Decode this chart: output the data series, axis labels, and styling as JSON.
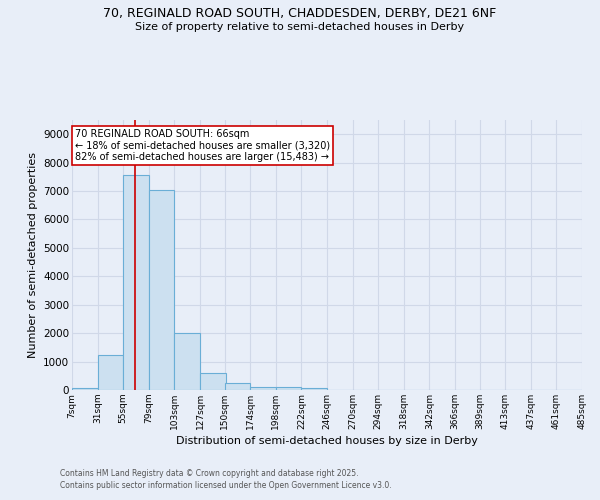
{
  "title_line1": "70, REGINALD ROAD SOUTH, CHADDESDEN, DERBY, DE21 6NF",
  "title_line2": "Size of property relative to semi-detached houses in Derby",
  "xlabel": "Distribution of semi-detached houses by size in Derby",
  "ylabel": "Number of semi-detached properties",
  "bar_left_edges": [
    7,
    31,
    55,
    79,
    103,
    127,
    150,
    174,
    198,
    222,
    246,
    270,
    294,
    318,
    342,
    366,
    389,
    413,
    437,
    461
  ],
  "bar_widths": [
    24,
    24,
    24,
    24,
    24,
    24,
    24,
    24,
    24,
    24,
    24,
    24,
    24,
    24,
    24,
    24,
    24,
    24,
    24,
    24
  ],
  "bar_heights": [
    70,
    1220,
    7580,
    7030,
    2020,
    590,
    250,
    110,
    100,
    70,
    0,
    0,
    0,
    0,
    0,
    0,
    0,
    0,
    0,
    0
  ],
  "bar_color": "#cce0f0",
  "bar_edge_color": "#6aaed6",
  "bar_edge_width": 0.8,
  "x_tick_labels": [
    "7sqm",
    "31sqm",
    "55sqm",
    "79sqm",
    "103sqm",
    "127sqm",
    "150sqm",
    "174sqm",
    "198sqm",
    "222sqm",
    "246sqm",
    "270sqm",
    "294sqm",
    "318sqm",
    "342sqm",
    "366sqm",
    "389sqm",
    "413sqm",
    "437sqm",
    "461sqm",
    "485sqm"
  ],
  "x_tick_positions": [
    7,
    31,
    55,
    79,
    103,
    127,
    150,
    174,
    198,
    222,
    246,
    270,
    294,
    318,
    342,
    366,
    389,
    413,
    437,
    461,
    485
  ],
  "ylim": [
    0,
    9500
  ],
  "xlim": [
    7,
    485
  ],
  "yticks": [
    0,
    1000,
    2000,
    3000,
    4000,
    5000,
    6000,
    7000,
    8000,
    9000
  ],
  "red_line_x": 66,
  "red_line_color": "#cc0000",
  "annotation_text": "70 REGINALD ROAD SOUTH: 66sqm\n← 18% of semi-detached houses are smaller (3,320)\n82% of semi-detached houses are larger (15,483) →",
  "annotation_box_color": "#ffffff",
  "annotation_box_edge_color": "#cc0000",
  "grid_color": "#d0d8e8",
  "background_color": "#e8eef8",
  "footer_line1": "Contains HM Land Registry data © Crown copyright and database right 2025.",
  "footer_line2": "Contains public sector information licensed under the Open Government Licence v3.0."
}
